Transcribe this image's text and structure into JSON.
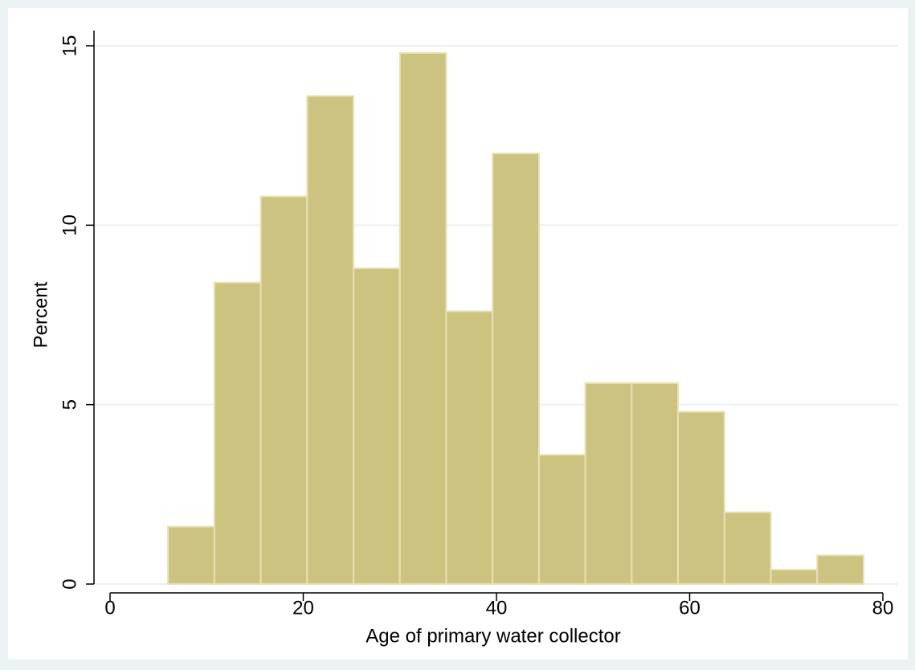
{
  "chart_data": {
    "type": "histogram",
    "x_label": "Age of primary water collector",
    "y_label": "Percent",
    "bins": [
      6,
      10.8,
      15.6,
      20.4,
      25.2,
      30,
      34.8,
      39.6,
      44.4,
      49.2,
      54,
      58.8,
      63.6,
      68.4,
      73.2,
      78
    ],
    "values": [
      1.6,
      8.4,
      10.8,
      13.6,
      8.8,
      14.8,
      7.6,
      12,
      3.6,
      5.6,
      5.6,
      4.8,
      2,
      0.4,
      0.8
    ],
    "color": "#ccc381",
    "xlim": [
      0,
      80
    ],
    "xticks": [
      0,
      20,
      40,
      60,
      80
    ],
    "ylim": [
      0,
      15
    ],
    "yticks": [
      0,
      5,
      10,
      15
    ],
    "grid": true
  }
}
